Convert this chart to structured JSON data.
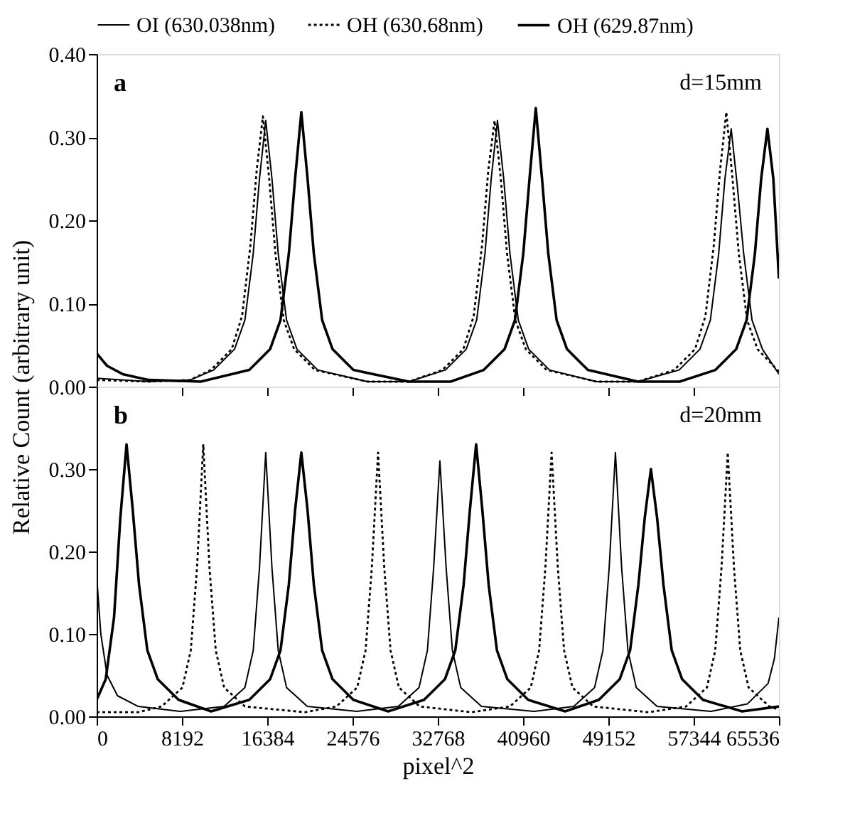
{
  "chart_data": [
    {
      "type": "line",
      "ylabel": "Relative Count (arbitrary unit)",
      "annotations": [
        "a",
        "d=15mm"
      ],
      "xlim": [
        0,
        65536
      ],
      "xticks": [
        0,
        8192,
        16384,
        24576,
        32768,
        40960,
        49152,
        57344,
        65536
      ],
      "ylim": [
        0,
        0.4
      ],
      "yticks": [
        {
          "value": 0,
          "label": "0.00"
        },
        {
          "value": 0.1,
          "label": "0.10"
        },
        {
          "value": 0.2,
          "label": "0.20"
        },
        {
          "value": 0.3,
          "label": "0.30"
        },
        {
          "value": 0.4,
          "label": "0.40"
        }
      ],
      "tick_labels": "y",
      "grid": false,
      "legend": "top",
      "marker": "none",
      "series": [
        {
          "name": "OI (630.038nm)",
          "color": "#000000",
          "line_style": "solid",
          "x": [
            0,
            5000,
            9000,
            11240,
            13240,
            14240,
            15040,
            15640,
            16240,
            16840,
            17440,
            18240,
            19240,
            21240,
            26000,
            30000,
            33500,
            35500,
            36500,
            37300,
            37900,
            38500,
            39100,
            39700,
            40500,
            41500,
            43500,
            48000,
            52000,
            55950,
            57950,
            58950,
            59750,
            60350,
            60950,
            61550,
            62150,
            62950,
            63950,
            65536
          ],
          "values": [
            0.01,
            0.006,
            0.008,
            0.02,
            0.045,
            0.08,
            0.16,
            0.25,
            0.32,
            0.25,
            0.16,
            0.08,
            0.045,
            0.02,
            0.006,
            0.006,
            0.02,
            0.045,
            0.08,
            0.16,
            0.25,
            0.32,
            0.25,
            0.16,
            0.08,
            0.045,
            0.02,
            0.006,
            0.006,
            0.02,
            0.045,
            0.08,
            0.16,
            0.25,
            0.31,
            0.24,
            0.16,
            0.08,
            0.045,
            0.015
          ]
        },
        {
          "name": "OH (630.68nm)",
          "color": "#000000",
          "line_style": "dotted",
          "x": [
            0,
            5000,
            9000,
            10970,
            12970,
            13970,
            14770,
            15370,
            15970,
            16570,
            17170,
            17970,
            18970,
            20970,
            26000,
            30000,
            33220,
            35220,
            36220,
            37020,
            37620,
            38220,
            38820,
            39420,
            40220,
            41220,
            43220,
            48000,
            52000,
            55480,
            57480,
            58480,
            59280,
            59880,
            60480,
            61080,
            61680,
            62480,
            63480,
            65536
          ],
          "values": [
            0.008,
            0.006,
            0.008,
            0.02,
            0.045,
            0.085,
            0.17,
            0.26,
            0.325,
            0.25,
            0.16,
            0.08,
            0.045,
            0.02,
            0.006,
            0.006,
            0.02,
            0.045,
            0.085,
            0.17,
            0.26,
            0.32,
            0.25,
            0.16,
            0.08,
            0.045,
            0.02,
            0.006,
            0.006,
            0.02,
            0.045,
            0.085,
            0.17,
            0.26,
            0.33,
            0.25,
            0.16,
            0.08,
            0.045,
            0.018
          ]
        },
        {
          "name": "OH (629.87nm)",
          "color": "#000000",
          "line_style": "solid",
          "x": [
            0,
            1000,
            2500,
            5000,
            10000,
            14660,
            16660,
            17660,
            18460,
            19060,
            19660,
            20260,
            20860,
            21660,
            22660,
            24660,
            30000,
            34000,
            37180,
            39180,
            40180,
            40980,
            41580,
            42180,
            42780,
            43380,
            44180,
            45180,
            47180,
            52000,
            56000,
            59430,
            61430,
            62430,
            63230,
            63830,
            64430,
            65000,
            65536
          ],
          "values": [
            0.04,
            0.025,
            0.015,
            0.008,
            0.006,
            0.02,
            0.045,
            0.08,
            0.16,
            0.25,
            0.33,
            0.25,
            0.16,
            0.08,
            0.045,
            0.02,
            0.006,
            0.006,
            0.02,
            0.045,
            0.08,
            0.16,
            0.25,
            0.335,
            0.25,
            0.16,
            0.08,
            0.045,
            0.02,
            0.006,
            0.006,
            0.02,
            0.045,
            0.08,
            0.16,
            0.25,
            0.31,
            0.25,
            0.13
          ]
        }
      ]
    },
    {
      "type": "line",
      "xlabel": "pixel^2",
      "annotations": [
        "b",
        "d=20mm"
      ],
      "xlim": [
        0,
        65536
      ],
      "xticks": [
        0,
        8192,
        16384,
        24576,
        32768,
        40960,
        49152,
        57344,
        65536
      ],
      "ylim": [
        0,
        0.4
      ],
      "yticks": [
        {
          "value": 0,
          "label": "0.00"
        },
        {
          "value": 0.1,
          "label": "0.10"
        },
        {
          "value": 0.2,
          "label": "0.20"
        },
        {
          "value": 0.3,
          "label": "0.30"
        }
      ],
      "grid": false,
      "legend": false,
      "marker": "none",
      "series": [
        {
          "name": "OI (630.038nm)",
          "color": "#000000",
          "line_style": "solid",
          "x": [
            0,
            400,
            1000,
            2000,
            4000,
            8000,
            12240,
            14240,
            15040,
            15640,
            16240,
            16840,
            17440,
            18240,
            20240,
            25000,
            28970,
            30970,
            31770,
            32370,
            32970,
            33570,
            34170,
            34970,
            36970,
            42000,
            45830,
            47830,
            48630,
            49230,
            49830,
            50430,
            51030,
            51830,
            53830,
            59000,
            62500,
            64500,
            65100,
            65536
          ],
          "values": [
            0.17,
            0.1,
            0.05,
            0.025,
            0.012,
            0.006,
            0.012,
            0.035,
            0.08,
            0.18,
            0.32,
            0.18,
            0.08,
            0.035,
            0.012,
            0.006,
            0.012,
            0.035,
            0.08,
            0.18,
            0.31,
            0.18,
            0.08,
            0.035,
            0.012,
            0.006,
            0.012,
            0.035,
            0.08,
            0.18,
            0.32,
            0.18,
            0.08,
            0.035,
            0.012,
            0.006,
            0.015,
            0.04,
            0.07,
            0.12
          ]
        },
        {
          "name": "OH (630.68nm)",
          "color": "#000000",
          "line_style": "dotted",
          "x": [
            0,
            4000,
            6240,
            8240,
            9040,
            9640,
            10240,
            10840,
            11440,
            12240,
            14240,
            20000,
            23030,
            25030,
            25830,
            26430,
            27030,
            27630,
            28230,
            29030,
            31030,
            36000,
            39700,
            41700,
            42500,
            43100,
            43700,
            44300,
            44900,
            45700,
            47700,
            53000,
            56620,
            58620,
            59420,
            60020,
            60620,
            61220,
            61820,
            62620,
            64620,
            65536
          ],
          "values": [
            0.005,
            0.005,
            0.012,
            0.035,
            0.08,
            0.18,
            0.33,
            0.18,
            0.08,
            0.035,
            0.012,
            0.005,
            0.012,
            0.035,
            0.08,
            0.18,
            0.32,
            0.18,
            0.08,
            0.035,
            0.012,
            0.005,
            0.012,
            0.035,
            0.08,
            0.18,
            0.32,
            0.18,
            0.08,
            0.035,
            0.012,
            0.005,
            0.012,
            0.035,
            0.08,
            0.18,
            0.32,
            0.18,
            0.08,
            0.035,
            0.012,
            0.008
          ]
        },
        {
          "name": "OH (629.87nm)",
          "color": "#000000",
          "line_style": "solid",
          "x": [
            0,
            870,
            1670,
            2270,
            2870,
            3470,
            4070,
            4870,
            5870,
            7870,
            11000,
            14660,
            16660,
            17660,
            18460,
            19060,
            19660,
            20260,
            20860,
            21660,
            22660,
            24660,
            28000,
            31450,
            33450,
            34450,
            35250,
            35850,
            36450,
            37050,
            37650,
            38450,
            39450,
            41450,
            45000,
            48240,
            50240,
            51240,
            52040,
            52640,
            53240,
            53840,
            54440,
            55240,
            56240,
            58240,
            62000,
            65536
          ],
          "values": [
            0.02,
            0.045,
            0.12,
            0.24,
            0.33,
            0.25,
            0.16,
            0.08,
            0.045,
            0.02,
            0.006,
            0.02,
            0.045,
            0.08,
            0.16,
            0.25,
            0.32,
            0.25,
            0.16,
            0.08,
            0.045,
            0.02,
            0.006,
            0.02,
            0.045,
            0.08,
            0.16,
            0.25,
            0.33,
            0.25,
            0.16,
            0.08,
            0.045,
            0.02,
            0.006,
            0.02,
            0.045,
            0.08,
            0.16,
            0.24,
            0.3,
            0.24,
            0.16,
            0.08,
            0.045,
            0.02,
            0.006,
            0.012
          ]
        }
      ]
    }
  ]
}
